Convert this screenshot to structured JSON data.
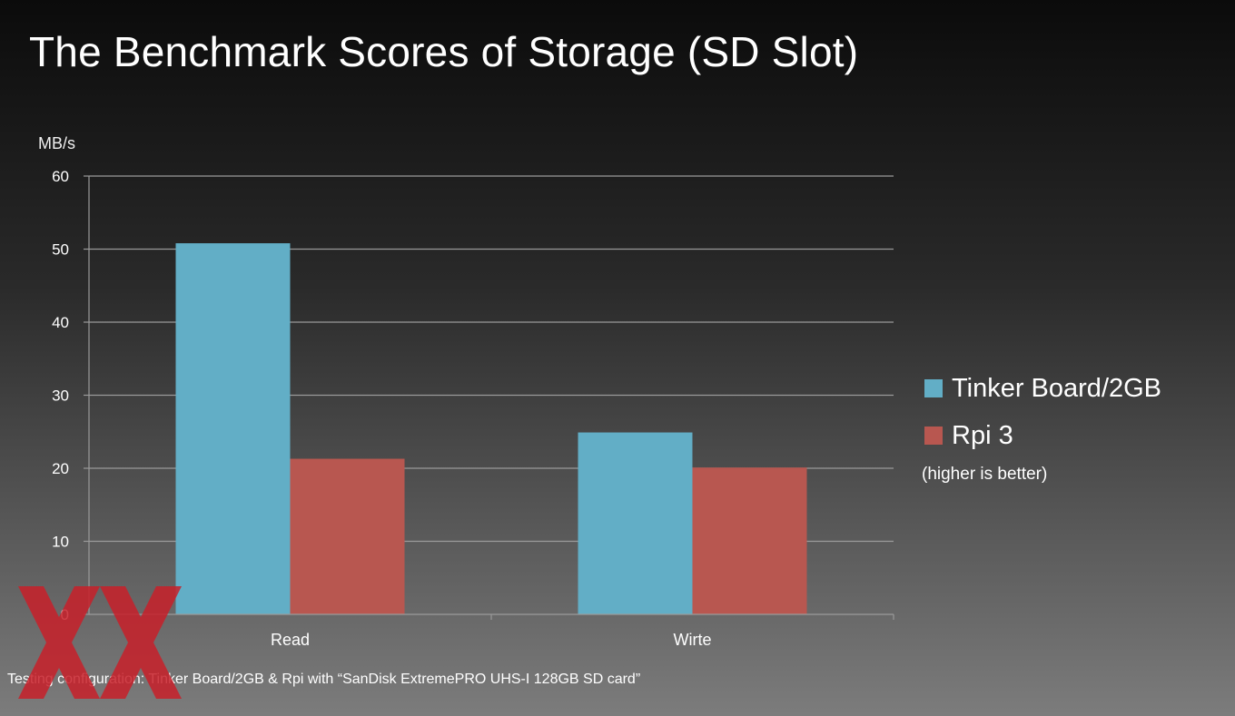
{
  "slide": {
    "title": "The Benchmark Scores of Storage (SD Slot)",
    "footnote": "Testing configuration: Tinker Board/2GB & Rpi with “SanDisk ExtremePRO UHS-I 128GB SD card”",
    "legend_note": "(higher is better)",
    "watermark_text": "XX"
  },
  "colors": {
    "tinker": "#62aec6",
    "rpi": "#b85750",
    "gridline": "#9a9a9a",
    "watermark": "#c8202a"
  },
  "chart_data": {
    "type": "bar",
    "title": "The Benchmark Scores of Storage (SD Slot)",
    "ylabel": "MB/s",
    "xlabel": "",
    "categories": [
      "Read",
      "Wirte"
    ],
    "series": [
      {
        "name": "Tinker Board/2GB",
        "color": "#62aec6",
        "values": [
          50.8,
          24.9
        ]
      },
      {
        "name": "Rpi 3",
        "color": "#b85750",
        "values": [
          21.3,
          20.1
        ]
      }
    ],
    "ylim": [
      0,
      60
    ],
    "yticks": [
      0,
      10,
      20,
      30,
      40,
      50,
      60
    ],
    "grid": true,
    "legend_position": "right"
  }
}
